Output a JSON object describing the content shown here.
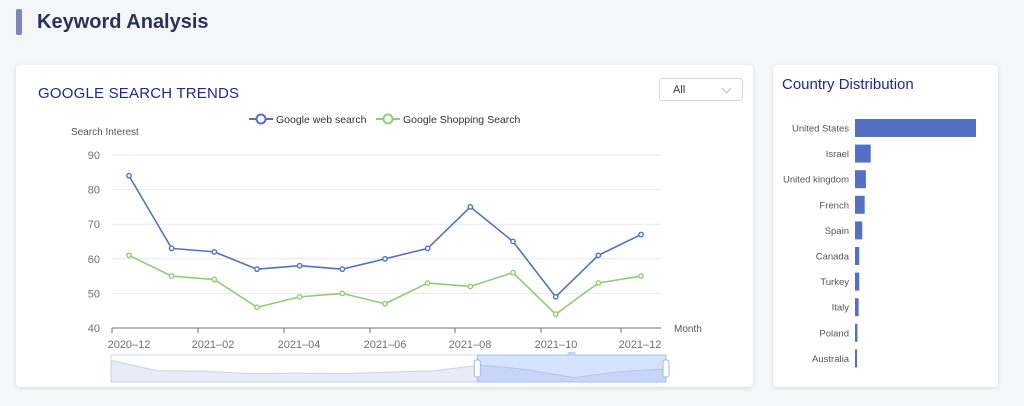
{
  "page": {
    "title": "Keyword Analysis"
  },
  "trends": {
    "title": "GOOGLE SEARCH TRENDS",
    "filter_value": "All"
  },
  "country": {
    "title": "Country Distribution"
  },
  "colors": {
    "web": "#5470c6",
    "shopping": "#91cc75",
    "bar": "#5470c6",
    "accent": "#7f88b8",
    "title": "#1f2a8a"
  },
  "chart_data": [
    {
      "type": "line",
      "title": "",
      "xlabel": "Month",
      "ylabel": "Search Interest",
      "ylim": [
        40,
        90
      ],
      "y_ticks": [
        40,
        50,
        60,
        70,
        80,
        90
      ],
      "x_tick_labels": [
        "2020–12",
        "2021–02",
        "2021–04",
        "2021–06",
        "2021–08",
        "2021–10",
        "2021–12"
      ],
      "x": [
        "2020-12",
        "2021-01",
        "2021-02",
        "2021-03",
        "2021-04",
        "2021-05",
        "2021-06",
        "2021-07",
        "2021-08",
        "2021-09",
        "2021-10",
        "2021-11",
        "2021-12"
      ],
      "legend_position": "top-center",
      "grid": true,
      "series": [
        {
          "name": "Google web search",
          "color": "#5470c6",
          "values": [
            84,
            63,
            62,
            57,
            58,
            57,
            60,
            63,
            75,
            65,
            49,
            61,
            67
          ]
        },
        {
          "name": "Google Shopping Search",
          "color": "#91cc75",
          "values": [
            61,
            55,
            54,
            46,
            49,
            50,
            47,
            53,
            52,
            56,
            44,
            53,
            55
          ]
        }
      ],
      "data_zoom": {
        "start": 0.66,
        "end": 1.0
      }
    },
    {
      "type": "bar",
      "orientation": "horizontal",
      "title": "",
      "categories": [
        "United States",
        "Israel",
        "United kingdom",
        "French",
        "Spain",
        "Canada",
        "Turkey",
        "Italy",
        "Poland",
        "Australia"
      ],
      "values": [
        100,
        13,
        9,
        8,
        6,
        3.5,
        3.5,
        3,
        2,
        1.5
      ],
      "grid": false
    }
  ]
}
